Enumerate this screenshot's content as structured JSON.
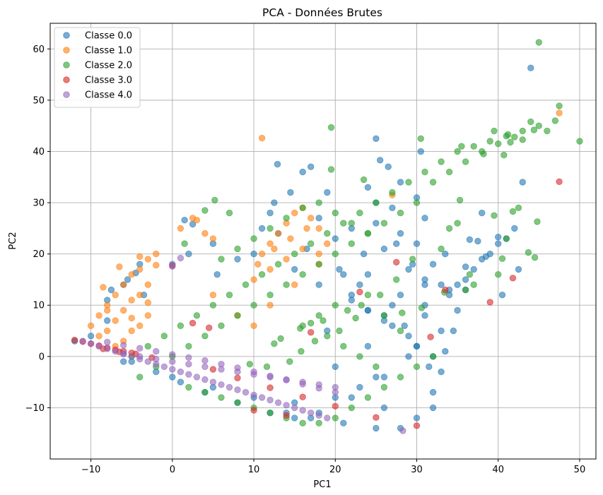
{
  "chart_data": {
    "type": "scatter",
    "title": "PCA - Données Brutes",
    "xlabel": "PC1",
    "ylabel": "PC2",
    "xlim": [
      -15,
      52
    ],
    "ylim": [
      -20,
      65
    ],
    "xticks": [
      -10,
      0,
      10,
      20,
      30,
      40,
      50
    ],
    "yticks": [
      -10,
      0,
      10,
      20,
      30,
      40,
      50,
      60
    ],
    "xtick_labels": [
      "−10",
      "0",
      "10",
      "20",
      "30",
      "40",
      "50"
    ],
    "ytick_labels": [
      "−10",
      "0",
      "10",
      "20",
      "30",
      "40",
      "50",
      "60"
    ],
    "grid": true,
    "legend_position": "upper-left",
    "marker_alpha": 0.6,
    "series": [
      {
        "name": "Classe 0.0",
        "color": "#1f77b4",
        "x": [
          -12,
          -10,
          -8,
          -8,
          -6,
          -4,
          0,
          2,
          5,
          10,
          15,
          20,
          25,
          28,
          30,
          32,
          33,
          31,
          30,
          25,
          20,
          15,
          10,
          5,
          0,
          -5,
          12,
          18,
          22,
          26,
          29,
          31,
          27,
          24,
          20,
          23,
          26,
          30,
          32,
          28,
          25,
          21,
          17,
          14,
          19,
          24,
          28,
          31,
          33,
          29,
          26,
          22,
          18,
          15,
          12,
          8,
          4,
          1,
          -2,
          -6,
          25,
          27,
          30,
          31,
          24,
          22,
          26,
          29,
          32,
          34,
          36,
          38,
          40,
          42,
          35,
          37,
          39,
          41,
          38,
          43,
          44,
          33.5,
          37.5,
          34,
          36,
          40,
          36.5,
          38.5,
          40.5,
          42.5,
          12.9,
          25.5,
          25,
          17,
          16,
          30.5,
          12.5,
          14.5,
          26.5,
          28,
          24,
          19,
          2.5,
          1.5,
          -4.5,
          -5.5,
          -7.5,
          -3.5,
          5.5,
          8,
          11,
          13,
          16.5,
          21,
          23,
          27,
          28.5,
          30,
          31.5,
          32,
          33,
          33.5,
          34.5,
          35,
          36,
          31,
          29.5,
          27.5,
          23.5,
          20.5,
          18,
          22,
          24,
          26
        ],
        "y": [
          3,
          4,
          7,
          11,
          14,
          18,
          18,
          20,
          22,
          20,
          17,
          23,
          26,
          24,
          22,
          18,
          14,
          8,
          2,
          -4,
          -8,
          -9,
          -8,
          -6,
          -4,
          -1,
          28,
          27,
          25,
          21,
          17,
          10,
          6,
          2,
          -2,
          -6,
          -10,
          -12,
          -10,
          -14,
          -14,
          -13,
          -12,
          -11,
          5,
          9,
          12,
          15,
          5,
          0,
          -4,
          -8,
          -11,
          -12,
          -11,
          -9,
          -7,
          -5,
          -3,
          -1,
          30,
          29,
          31,
          27,
          16,
          12,
          8,
          4,
          0,
          12,
          15,
          19,
          22,
          25,
          14,
          17,
          20,
          23,
          28,
          34,
          56.3,
          20,
          22.5,
          13,
          17.5,
          23.3,
          22.8,
          19.5,
          12,
          17,
          37.5,
          38.3,
          42.5,
          37,
          36,
          40,
          30,
          32,
          37,
          34,
          33,
          32,
          25.8,
          26.6,
          16.3,
          15,
          13,
          12,
          16,
          19,
          25,
          24,
          21,
          16,
          14,
          10,
          6,
          2,
          -2,
          -7,
          -3,
          1,
          5,
          9,
          13,
          14,
          18,
          22,
          20,
          17,
          14,
          11,
          9,
          7
        ]
      },
      {
        "name": "Classe 1.0",
        "color": "#ff7f0e",
        "x": [
          -10,
          -9,
          -8,
          -7,
          -6,
          -5,
          -4,
          -3,
          -2,
          -9,
          -8,
          -7,
          -6,
          -5,
          -4,
          -3,
          -7,
          -6,
          -5,
          -4,
          -3,
          1,
          2.5,
          4,
          5,
          11,
          12,
          13,
          14,
          15,
          16,
          17,
          18,
          19,
          10,
          12,
          14,
          16,
          18,
          5,
          8,
          10,
          12,
          15,
          18,
          47.5,
          27,
          11,
          -8.5,
          -6.5,
          -4,
          -2,
          -8,
          -5,
          -3,
          10.5,
          12.5,
          14.5,
          16.5,
          3
        ],
        "y": [
          6,
          8,
          10,
          12,
          14,
          16,
          17,
          19,
          20,
          4,
          5,
          7,
          9,
          11,
          12,
          14,
          2,
          3,
          5,
          6,
          8,
          25,
          27,
          24,
          23,
          20,
          22,
          24,
          26,
          28,
          29,
          27,
          25,
          22,
          15,
          17,
          19,
          21,
          20,
          12,
          8,
          6,
          10,
          14,
          18,
          47.5,
          31.5,
          42.6,
          13.5,
          17.5,
          19.5,
          17.8,
          9,
          7.5,
          10.5,
          18,
          21,
          23,
          25,
          26.6
        ]
      },
      {
        "name": "Classe 2.0",
        "color": "#2ca02c",
        "x": [
          -5,
          -3,
          -1,
          1,
          3,
          5,
          7,
          9,
          11,
          13,
          15,
          17,
          19,
          21,
          23,
          25,
          27,
          29,
          31,
          33,
          35,
          37,
          39,
          41,
          43,
          45,
          47,
          50,
          45,
          44,
          42,
          40,
          38,
          36,
          34,
          32,
          30,
          28,
          26,
          24,
          22,
          20,
          18,
          16,
          14,
          12,
          10,
          8,
          6,
          4,
          2,
          0,
          -2,
          -4,
          2,
          4,
          6,
          8,
          10,
          12,
          14,
          16,
          18,
          20,
          22,
          24,
          26,
          28,
          30,
          32,
          20,
          18,
          16,
          19,
          21,
          23,
          25,
          24,
          22,
          20,
          18,
          16,
          14,
          12,
          10,
          8,
          6,
          19.5,
          19.5,
          23.5,
          30.5,
          35.5,
          38.2,
          40.7,
          39.5,
          41.2,
          41.5,
          43,
          44.4,
          46,
          47.5,
          44.8,
          42.5,
          41.8,
          40.5,
          36.5,
          33.4,
          30.6,
          28.2,
          22.5,
          18.5,
          17,
          15.7,
          13.3,
          12.5,
          7,
          5.2,
          4,
          1.5,
          34,
          35,
          29.5,
          27.5,
          25.5,
          23.2,
          21.5,
          20.5,
          17.5,
          15.8,
          14.4,
          9.5,
          11.6,
          24,
          26,
          28,
          36,
          37,
          33,
          35.3,
          44.5,
          43.7,
          40,
          41,
          39.5
        ],
        "y": [
          0,
          2,
          4,
          6,
          8,
          10,
          12,
          14,
          16,
          18,
          20,
          22,
          24,
          26,
          28,
          30,
          32,
          34,
          36,
          38,
          40,
          41,
          42,
          43,
          44,
          45,
          46,
          42,
          61.3,
          45.8,
          42.8,
          41.5,
          40,
          38,
          36,
          34,
          30,
          28,
          26,
          24,
          22,
          20,
          18,
          16,
          14,
          12,
          10,
          8,
          6,
          4,
          2,
          0,
          -2,
          -4,
          -6,
          -7,
          -8,
          -9,
          -10,
          -11,
          -12,
          -13,
          -13,
          -12,
          -10,
          -8,
          -6,
          -4,
          -2,
          0,
          10,
          8,
          6,
          4,
          2,
          0,
          -2,
          24,
          26,
          28,
          30,
          29,
          27,
          25,
          23,
          21,
          19,
          44.7,
          36.5,
          34.5,
          42.5,
          41,
          39.5,
          39.3,
          44,
          43.3,
          41.8,
          42.3,
          44.2,
          44,
          48.9,
          26.3,
          29,
          28.3,
          19.1,
          16,
          12.5,
          9.5,
          8.5,
          7.5,
          7,
          6.5,
          5.5,
          3.5,
          2.5,
          28,
          30.5,
          28.5,
          22,
          25,
          26,
          19,
          15,
          12,
          10,
          9,
          5,
          3,
          1,
          -1,
          -1.5,
          -2,
          12,
          8,
          5,
          13,
          14,
          21,
          30.5,
          19.3,
          20.3,
          16,
          23,
          27.5
        ]
      },
      {
        "name": "Classe 3.0",
        "color": "#d62728",
        "x": [
          -12,
          -11,
          -10,
          -9,
          -8,
          -7,
          -6,
          -5,
          0,
          2.5,
          4.5,
          10,
          14,
          17,
          23,
          27.5,
          33.5,
          31.7,
          39,
          41.8,
          47.5,
          -8.5,
          -6.5,
          -4.5,
          -2.5,
          5,
          8,
          12,
          16,
          20,
          25,
          30
        ],
        "y": [
          3.2,
          2.9,
          2.5,
          2.1,
          1.7,
          1.3,
          1,
          0.7,
          17.7,
          6.5,
          5.6,
          -10.5,
          -11.5,
          4.7,
          12.6,
          18.4,
          13,
          3.8,
          10.6,
          15.3,
          34.1,
          1.5,
          0.9,
          0.5,
          -0.2,
          -2.5,
          -4.2,
          -6.1,
          -7.9,
          -9.7,
          -11.9,
          -13.5
        ]
      },
      {
        "name": "Classe 4.0",
        "color": "#9467bd",
        "x": [
          -11,
          -10,
          -9,
          -8,
          -7,
          -6,
          -5,
          -4,
          -3,
          -2,
          -1,
          0,
          1,
          2,
          3,
          4,
          5,
          6,
          7,
          8,
          9,
          10,
          11,
          12,
          13,
          14,
          15,
          16,
          17,
          18,
          19,
          -8,
          -6,
          -4,
          -2,
          0,
          2,
          4,
          6,
          8,
          10,
          12,
          14,
          16,
          18,
          20,
          -6,
          -4,
          -2,
          0,
          2,
          4,
          6,
          8,
          10,
          12,
          14,
          16,
          18,
          20,
          0,
          1,
          28.3
        ],
        "y": [
          3,
          2.5,
          2,
          1.5,
          1,
          0.5,
          0,
          -0.5,
          -1,
          -1.5,
          -2,
          -2.5,
          -3,
          -3.5,
          -4,
          -4.5,
          -5,
          -5.5,
          -6,
          -6.5,
          -7,
          -7.5,
          -8,
          -8.5,
          -9,
          -9.5,
          -10,
          -10.5,
          -11,
          -11.5,
          -12,
          2.8,
          2.2,
          1.6,
          1,
          0.4,
          -0.2,
          -0.8,
          -1.5,
          -2.2,
          -3,
          -3.8,
          -4.6,
          -5.4,
          -6.2,
          -7,
          0.5,
          0,
          -0.5,
          -1,
          -1.5,
          -2,
          -2.5,
          -3,
          -3.5,
          -4,
          -4.5,
          -5,
          -5.5,
          -6,
          17.6,
          19.2,
          -14.5
        ]
      }
    ]
  }
}
